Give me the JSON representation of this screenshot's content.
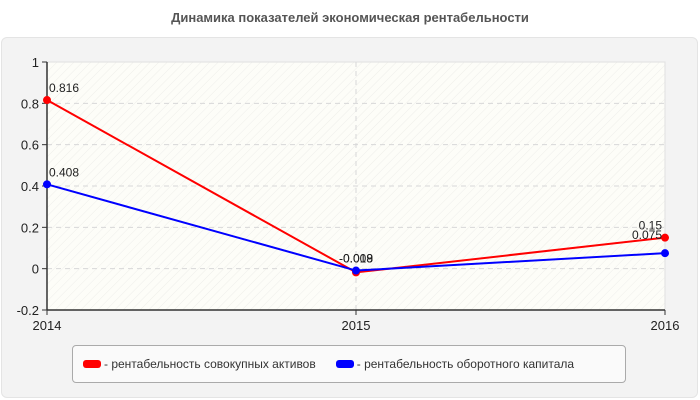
{
  "title": "Динамика показателей экономическая рентабельности",
  "chart_data": {
    "type": "line",
    "title": "Динамика показателей экономическая рентабельности",
    "xlabel": "",
    "ylabel": "",
    "categories": [
      "2014",
      "2015",
      "2016"
    ],
    "ylim": [
      -0.2,
      1
    ],
    "yticks": [
      "1",
      "0.8",
      "0.6",
      "0.4",
      "0.2",
      "0",
      "-0.2"
    ],
    "grid": true,
    "legend_position": "bottom",
    "series": [
      {
        "name": "рентабельность совокупных активов",
        "color": "#ff0000",
        "values": [
          0.816,
          -0.018,
          0.15
        ],
        "labels": [
          "0.816",
          "-0.018",
          "0.15"
        ]
      },
      {
        "name": "рентабельность оборотного капитала",
        "color": "#0000ff",
        "values": [
          0.408,
          -0.009,
          0.075
        ],
        "labels": [
          "0.408",
          "-0.009",
          "0.075"
        ]
      }
    ]
  },
  "legend": {
    "items": [
      {
        "label": "- рентабельность совокупных активов",
        "color": "#ff0000"
      },
      {
        "label": "- рентабельность оборотного капитала",
        "color": "#0000ff"
      }
    ]
  }
}
